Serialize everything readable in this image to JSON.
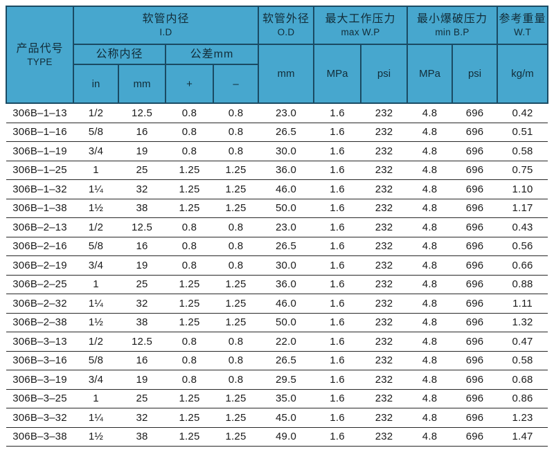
{
  "table": {
    "header": {
      "type_zh": "产品代号",
      "type_en": "TYPE",
      "id_zh": "软管内径",
      "id_en": "I.D",
      "nominal_id": "公称内径",
      "tolerance": "公差mm",
      "od_zh": "软管外径",
      "od_en": "O.D",
      "wp_zh": "最大工作压力",
      "wp_en": "max W.P",
      "bp_zh": "最小爆破压力",
      "bp_en": "min B.P",
      "wt_zh": "参考重量",
      "wt_en": "W.T",
      "unit_in": "in",
      "unit_mm": "mm",
      "plus": "+",
      "minus": "–",
      "unit_mpa": "MPa",
      "unit_psi": "psi",
      "unit_kgm": "kg/m"
    },
    "columns": [
      "type",
      "in",
      "mm",
      "plus",
      "minus",
      "od",
      "wp_mpa",
      "wp_psi",
      "bp_mpa",
      "bp_psi",
      "wt"
    ],
    "rows": [
      [
        "306B–1–13",
        "1/2",
        "12.5",
        "0.8",
        "0.8",
        "23.0",
        "1.6",
        "232",
        "4.8",
        "696",
        "0.42"
      ],
      [
        "306B–1–16",
        "5/8",
        "16",
        "0.8",
        "0.8",
        "26.5",
        "1.6",
        "232",
        "4.8",
        "696",
        "0.51"
      ],
      [
        "306B–1–19",
        "3/4",
        "19",
        "0.8",
        "0.8",
        "30.0",
        "1.6",
        "232",
        "4.8",
        "696",
        "0.58"
      ],
      [
        "306B–1–25",
        "1",
        "25",
        "1.25",
        "1.25",
        "36.0",
        "1.6",
        "232",
        "4.8",
        "696",
        "0.75"
      ],
      [
        "306B–1–32",
        "1¼",
        "32",
        "1.25",
        "1.25",
        "46.0",
        "1.6",
        "232",
        "4.8",
        "696",
        "1.10"
      ],
      [
        "306B–1–38",
        "1½",
        "38",
        "1.25",
        "1.25",
        "50.0",
        "1.6",
        "232",
        "4.8",
        "696",
        "1.17"
      ],
      [
        "306B–2–13",
        "1/2",
        "12.5",
        "0.8",
        "0.8",
        "23.0",
        "1.6",
        "232",
        "4.8",
        "696",
        "0.43"
      ],
      [
        "306B–2–16",
        "5/8",
        "16",
        "0.8",
        "0.8",
        "26.5",
        "1.6",
        "232",
        "4.8",
        "696",
        "0.56"
      ],
      [
        "306B–2–19",
        "3/4",
        "19",
        "0.8",
        "0.8",
        "30.0",
        "1.6",
        "232",
        "4.8",
        "696",
        "0.66"
      ],
      [
        "306B–2–25",
        "1",
        "25",
        "1.25",
        "1.25",
        "36.0",
        "1.6",
        "232",
        "4.8",
        "696",
        "0.88"
      ],
      [
        "306B–2–32",
        "1¼",
        "32",
        "1.25",
        "1.25",
        "46.0",
        "1.6",
        "232",
        "4.8",
        "696",
        "1.11"
      ],
      [
        "306B–2–38",
        "1½",
        "38",
        "1.25",
        "1.25",
        "50.0",
        "1.6",
        "232",
        "4.8",
        "696",
        "1.32"
      ],
      [
        "306B–3–13",
        "1/2",
        "12.5",
        "0.8",
        "0.8",
        "22.0",
        "1.6",
        "232",
        "4.8",
        "696",
        "0.47"
      ],
      [
        "306B–3–16",
        "5/8",
        "16",
        "0.8",
        "0.8",
        "26.5",
        "1.6",
        "232",
        "4.8",
        "696",
        "0.58"
      ],
      [
        "306B–3–19",
        "3/4",
        "19",
        "0.8",
        "0.8",
        "29.5",
        "1.6",
        "232",
        "4.8",
        "696",
        "0.68"
      ],
      [
        "306B–3–25",
        "1",
        "25",
        "1.25",
        "1.25",
        "35.0",
        "1.6",
        "232",
        "4.8",
        "696",
        "0.86"
      ],
      [
        "306B–3–32",
        "1¼",
        "32",
        "1.25",
        "1.25",
        "45.0",
        "1.6",
        "232",
        "4.8",
        "696",
        "1.23"
      ],
      [
        "306B–3–38",
        "1½",
        "38",
        "1.25",
        "1.25",
        "49.0",
        "1.6",
        "232",
        "4.8",
        "696",
        "1.47"
      ]
    ]
  },
  "colors": {
    "header_bg": "#47a7ce",
    "header_line": "#1a4a63",
    "header_text": "#122c38",
    "body_line": "#262626",
    "body_text": "#1a1a1a"
  }
}
